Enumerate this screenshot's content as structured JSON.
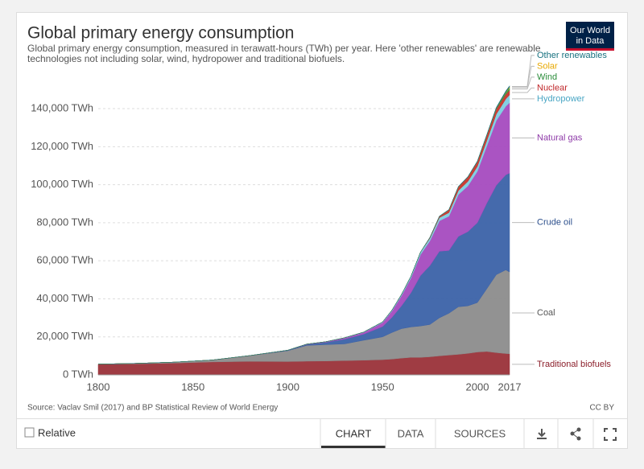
{
  "chart_data": {
    "type": "stacked-area",
    "title": "Global primary energy consumption",
    "subtitle": [
      "Global primary energy consumption, measured in terawatt-hours (TWh) per year. Here 'other renewables' are renewable",
      "technologies not including solar, wind, hydropower and traditional biofuels."
    ],
    "source": "Source: Vaclav Smil (2017) and BP Statistical Review of World Energy",
    "license": "CC BY",
    "x": [
      1800,
      1820,
      1840,
      1860,
      1880,
      1900,
      1910,
      1920,
      1930,
      1940,
      1950,
      1955,
      1960,
      1965,
      1970,
      1975,
      1980,
      1985,
      1990,
      1995,
      2000,
      2005,
      2010,
      2015,
      2017
    ],
    "xlim": [
      1800,
      2017
    ],
    "xticks": [
      1800,
      1850,
      1900,
      1950,
      2000,
      2017
    ],
    "ylim": [
      0,
      155000
    ],
    "yticks": [
      {
        "value": 0,
        "label": "0 TWh"
      },
      {
        "value": 20000,
        "label": "20,000 TWh"
      },
      {
        "value": 40000,
        "label": "40,000 TWh"
      },
      {
        "value": 60000,
        "label": "60,000 TWh"
      },
      {
        "value": 80000,
        "label": "80,000 TWh"
      },
      {
        "value": 100000,
        "label": "100,000 TWh"
      },
      {
        "value": 120000,
        "label": "120,000 TWh"
      },
      {
        "value": 140000,
        "label": "140,000 TWh"
      }
    ],
    "grid": true,
    "series": [
      {
        "name": "Traditional biofuels",
        "color": "#9a3139",
        "label_color": "#8b1e2a",
        "values": [
          5556,
          5800,
          6200,
          6800,
          7100,
          7000,
          7200,
          7300,
          7500,
          7700,
          8000,
          8300,
          8800,
          9200,
          9200,
          9500,
          10000,
          10400,
          10800,
          11300,
          12000,
          12300,
          11700,
          11200,
          11100
        ]
      },
      {
        "name": "Coal",
        "color": "#8c8c8c",
        "label_color": "#555555",
        "values": [
          97,
          250,
          500,
          1000,
          3000,
          5700,
          8300,
          8600,
          8800,
          10500,
          12000,
          14000,
          15500,
          16000,
          16500,
          17000,
          20000,
          22000,
          25000,
          25000,
          26000,
          33000,
          41000,
          44000,
          43000
        ]
      },
      {
        "name": "Crude oil",
        "color": "#3b62a8",
        "label_color": "#2c4f8c",
        "values": [
          0,
          0,
          0,
          0,
          30,
          200,
          500,
          1200,
          2500,
          3200,
          5400,
          8000,
          12000,
          18000,
          26500,
          31000,
          35000,
          33000,
          37000,
          39000,
          42000,
          45000,
          47000,
          50000,
          52000
        ]
      },
      {
        "name": "Natural gas",
        "color": "#a54bbf",
        "label_color": "#8e3aa8",
        "values": [
          0,
          0,
          0,
          0,
          30,
          60,
          150,
          250,
          600,
          900,
          2100,
          3300,
          5300,
          7800,
          11000,
          13000,
          16000,
          18000,
          22000,
          24000,
          27000,
          30000,
          34000,
          36000,
          37000
        ]
      },
      {
        "name": "Hydropower",
        "color": "#7ccde0",
        "label_color": "#4aa6c4",
        "values": [
          0,
          0,
          0,
          0,
          0,
          20,
          40,
          70,
          130,
          190,
          330,
          500,
          690,
          920,
          1200,
          1400,
          1700,
          1900,
          2100,
          2400,
          2600,
          2900,
          3400,
          3900,
          4100
        ]
      },
      {
        "name": "Nuclear",
        "color": "#c8342b",
        "label_color": "#c0282b",
        "values": [
          0,
          0,
          0,
          0,
          0,
          0,
          0,
          0,
          0,
          0,
          0,
          0,
          2,
          30,
          100,
          400,
          700,
          1500,
          2000,
          2300,
          2500,
          2700,
          2700,
          2500,
          2600
        ]
      },
      {
        "name": "Wind",
        "color": "#2e9e45",
        "label_color": "#2a8c3a",
        "values": [
          0,
          0,
          0,
          0,
          0,
          0,
          0,
          0,
          0,
          0,
          0,
          0,
          0,
          0,
          0,
          0,
          0,
          0,
          4,
          8,
          30,
          100,
          340,
          830,
          1100
        ]
      },
      {
        "name": "Solar",
        "color": "#f0b000",
        "label_color": "#e8a800",
        "values": [
          0,
          0,
          0,
          0,
          0,
          0,
          0,
          0,
          0,
          0,
          0,
          0,
          0,
          0,
          0,
          0,
          0,
          0,
          0,
          0,
          1,
          4,
          30,
          250,
          440
        ]
      },
      {
        "name": "Other renewables",
        "color": "#17717f",
        "label_color": "#17717f",
        "values": [
          0,
          0,
          0,
          0,
          0,
          0,
          0,
          0,
          0,
          0,
          0,
          0,
          0,
          0,
          30,
          50,
          100,
          150,
          200,
          250,
          300,
          400,
          500,
          600,
          650
        ]
      }
    ]
  },
  "ui": {
    "logo": [
      "Our World",
      "in Data"
    ],
    "relative": "Relative",
    "tabs": [
      "CHART",
      "DATA",
      "SOURCES"
    ]
  }
}
